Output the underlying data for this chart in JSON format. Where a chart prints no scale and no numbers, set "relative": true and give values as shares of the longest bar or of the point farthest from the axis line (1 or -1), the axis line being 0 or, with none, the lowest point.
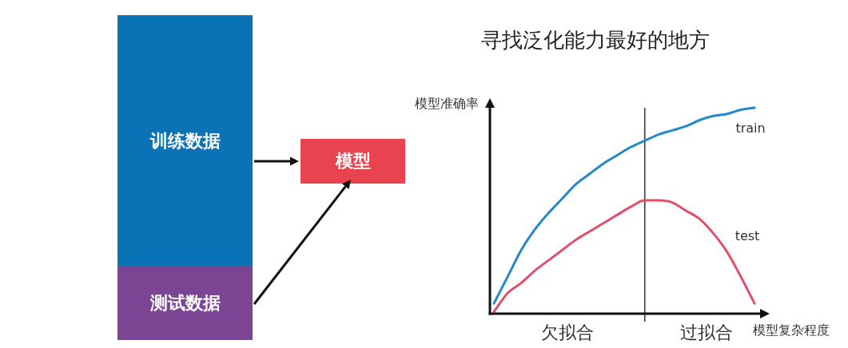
{
  "chart_data": [
    {
      "type": "other",
      "annotations": [
        "训练数据",
        "测试数据",
        "模型"
      ]
    },
    {
      "type": "line",
      "title": "寻找泛化能力最好的地方",
      "xlabel": "模型复杂程度",
      "ylabel": "模型准确率",
      "relative": true,
      "categories": [
        null,
        null,
        null,
        null,
        null,
        null,
        null,
        null,
        null,
        null,
        null,
        null,
        null,
        null,
        null,
        null,
        null,
        null,
        null,
        null
      ],
      "series": [
        {
          "name": "train",
          "color": "#2389c7",
          "values": [
            0.05,
            0.18,
            0.31,
            0.41,
            0.49,
            0.56,
            0.63,
            0.68,
            0.73,
            0.77,
            0.81,
            0.84,
            0.87,
            0.89,
            0.91,
            0.94,
            0.96,
            0.97,
            0.99,
            1
          ]
        },
        {
          "name": "test",
          "color": "#e1506a",
          "values": [
            0.01,
            0.1,
            0.15,
            0.21,
            0.26,
            0.31,
            0.36,
            0.4,
            0.44,
            0.48,
            0.52,
            0.55,
            0.55,
            0.54,
            0.5,
            0.46,
            0.39,
            0.3,
            0.18,
            0.05
          ]
        }
      ],
      "annotations": [
        "欠拟合",
        "过拟合"
      ]
    }
  ]
}
